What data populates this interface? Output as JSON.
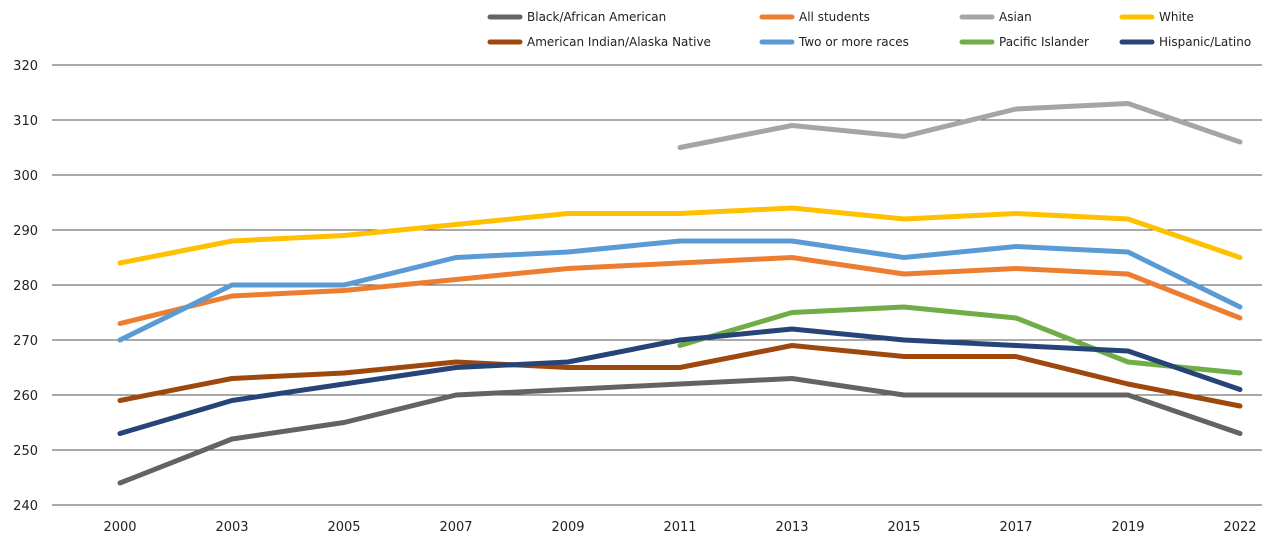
{
  "chart_data": {
    "type": "line",
    "title": "",
    "xlabel": "",
    "ylabel": "",
    "ylim": [
      240,
      320
    ],
    "yticks": [
      240,
      250,
      260,
      270,
      280,
      290,
      300,
      310,
      320
    ],
    "grid": "horizontal",
    "legend_placement": "top-right",
    "categories": [
      "2000",
      "2003",
      "2005",
      "2007",
      "2009",
      "2011",
      "2013",
      "2015",
      "2017",
      "2019",
      "2022"
    ],
    "series": [
      {
        "name": "Black/African American",
        "color": "#636363",
        "values": [
          244,
          252,
          255,
          260,
          261,
          262,
          263,
          260,
          260,
          260,
          253
        ]
      },
      {
        "name": "All students",
        "color": "#ED7D31",
        "values": [
          273,
          278,
          279,
          281,
          283,
          284,
          285,
          282,
          283,
          282,
          274
        ]
      },
      {
        "name": "Asian",
        "color": "#A5A5A5",
        "values": [
          null,
          null,
          null,
          null,
          null,
          305,
          309,
          307,
          312,
          313,
          306
        ]
      },
      {
        "name": "White",
        "color": "#FFC000",
        "values": [
          284,
          288,
          289,
          291,
          293,
          293,
          294,
          292,
          293,
          292,
          285
        ]
      },
      {
        "name": "American Indian/Alaska Native",
        "color": "#9E480E",
        "values": [
          259,
          263,
          264,
          266,
          265,
          265,
          269,
          267,
          267,
          262,
          258
        ]
      },
      {
        "name": "Two or more races",
        "color": "#5B9BD5",
        "values": [
          270,
          280,
          280,
          285,
          286,
          288,
          288,
          285,
          287,
          286,
          276
        ]
      },
      {
        "name": "Pacific Islander",
        "color": "#70AD47",
        "values": [
          null,
          null,
          null,
          null,
          null,
          269,
          275,
          276,
          274,
          266,
          264
        ]
      },
      {
        "name": "Hispanic/Latino",
        "color": "#264478",
        "values": [
          253,
          259,
          262,
          265,
          266,
          270,
          272,
          270,
          269,
          268,
          261
        ]
      }
    ]
  }
}
